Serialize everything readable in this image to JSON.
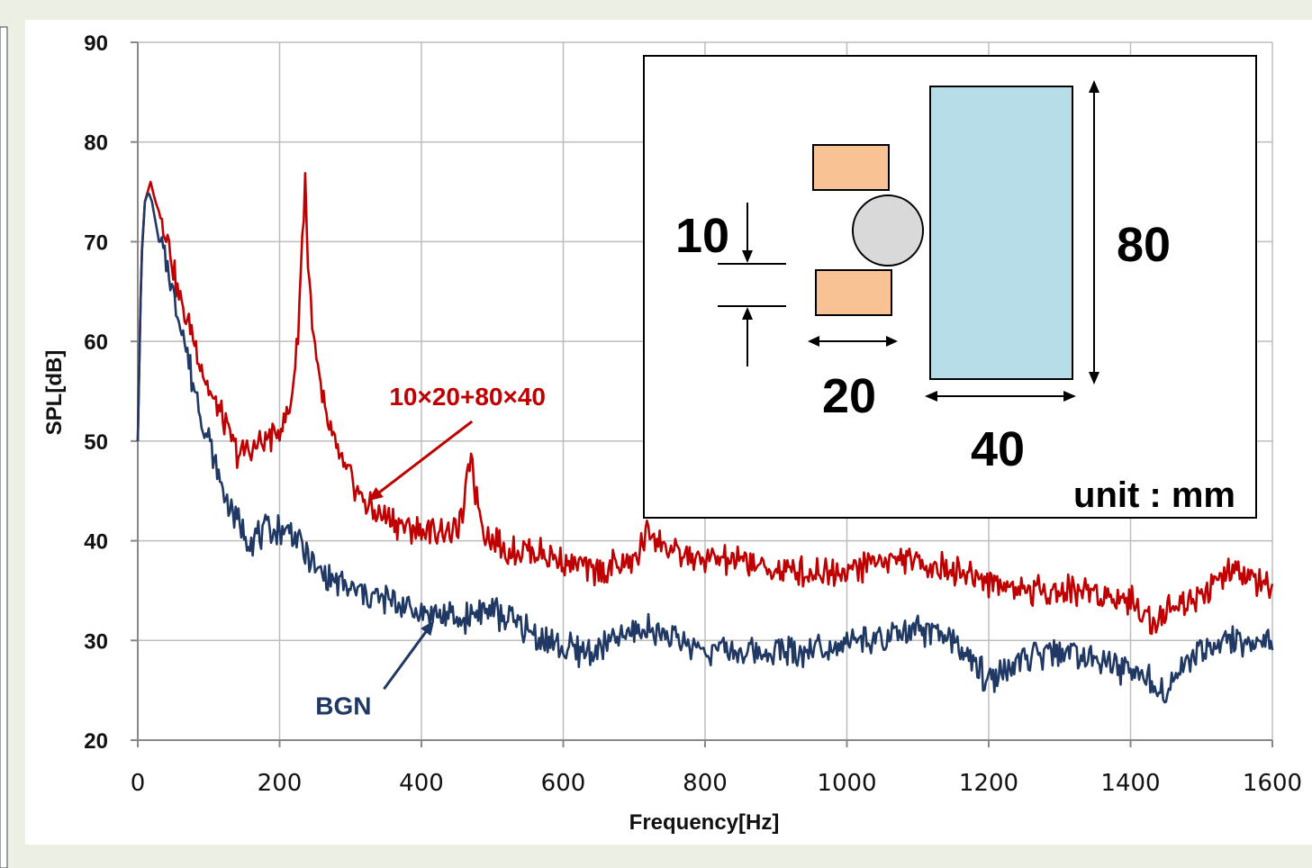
{
  "chart_data": {
    "type": "line",
    "title": "",
    "xlabel": "Frequency[Hz]",
    "ylabel": "SPL[dB]",
    "xlim": [
      0,
      1600
    ],
    "ylim": [
      20,
      90
    ],
    "xticks": [
      "0",
      "200",
      "400",
      "600",
      "800",
      "1000",
      "1200",
      "1400",
      "1600"
    ],
    "yticks": [
      "20",
      "30",
      "40",
      "50",
      "60",
      "70",
      "80",
      "90"
    ],
    "grid": true,
    "series": [
      {
        "name": "10×20+80×40",
        "color": "#c00000",
        "x": [
          0,
          5,
          10,
          18,
          25,
          40,
          60,
          80,
          100,
          120,
          140,
          160,
          180,
          200,
          215,
          225,
          232,
          236,
          240,
          248,
          260,
          280,
          300,
          330,
          360,
          400,
          430,
          450,
          460,
          466,
          470,
          476,
          490,
          520,
          560,
          600,
          650,
          700,
          720,
          750,
          800,
          850,
          900,
          950,
          1000,
          1050,
          1100,
          1150,
          1200,
          1250,
          1300,
          1350,
          1400,
          1430,
          1450,
          1480,
          1500,
          1550,
          1600
        ],
        "y": [
          50,
          68,
          74,
          76,
          74,
          71,
          64,
          60,
          55,
          52,
          49,
          49,
          50,
          51,
          53,
          60,
          70,
          77,
          68,
          60,
          54,
          49,
          46,
          43,
          42,
          41,
          41,
          41,
          43,
          47,
          49,
          45,
          41,
          39,
          39,
          38,
          37,
          38,
          41,
          39,
          38,
          38,
          37,
          37,
          37,
          38,
          38,
          37,
          36,
          35,
          35,
          35,
          34,
          32,
          33,
          34,
          35,
          37,
          35
        ]
      },
      {
        "name": "BGN",
        "color": "#1f3864",
        "x": [
          0,
          5,
          10,
          15,
          20,
          25,
          30,
          40,
          60,
          80,
          100,
          120,
          140,
          160,
          180,
          200,
          220,
          250,
          300,
          350,
          400,
          450,
          480,
          500,
          550,
          600,
          650,
          700,
          730,
          760,
          800,
          850,
          900,
          950,
          1000,
          1050,
          1100,
          1150,
          1200,
          1250,
          1300,
          1350,
          1400,
          1450,
          1480,
          1500,
          1550,
          1600
        ],
        "y": [
          50,
          68,
          74,
          75,
          74,
          72,
          70,
          68,
          62,
          55,
          50,
          45,
          42,
          40,
          41,
          41,
          41,
          37,
          35,
          34,
          33,
          32,
          33,
          33,
          31,
          29,
          29,
          31,
          31,
          30,
          29,
          29,
          29,
          29,
          30,
          30,
          31,
          30,
          26,
          28,
          29,
          28,
          27,
          25,
          28,
          29,
          30,
          30
        ]
      }
    ],
    "annotations": [
      {
        "text": "10×20+80×40",
        "x": 465,
        "y": 54.5,
        "arrow_to": [
          325,
          44
        ]
      },
      {
        "text": "BGN",
        "x": 290,
        "y": 23.5,
        "arrow_to": [
          418,
          32
        ]
      }
    ]
  },
  "inset": {
    "labels": {
      "gap": "10",
      "width_small": "20",
      "width_large": "40",
      "height_large": "80",
      "unit": "unit : mm"
    },
    "colors": {
      "small_block": "#f9c294",
      "large_block": "#b7dde8",
      "cylinder": "#d9d9d9"
    }
  }
}
